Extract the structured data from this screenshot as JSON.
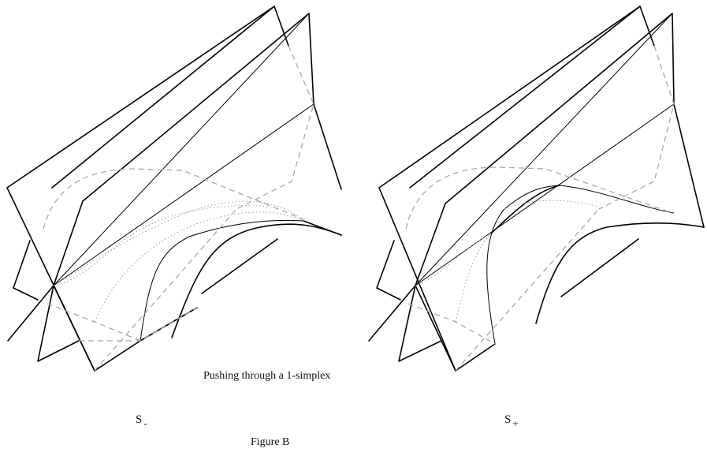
{
  "caption": "Pushing through a 1-simplex",
  "figure_label": "Figure B",
  "panels": [
    {
      "base": "S",
      "subscript": "-"
    },
    {
      "base": "S",
      "subscript": "+"
    }
  ]
}
